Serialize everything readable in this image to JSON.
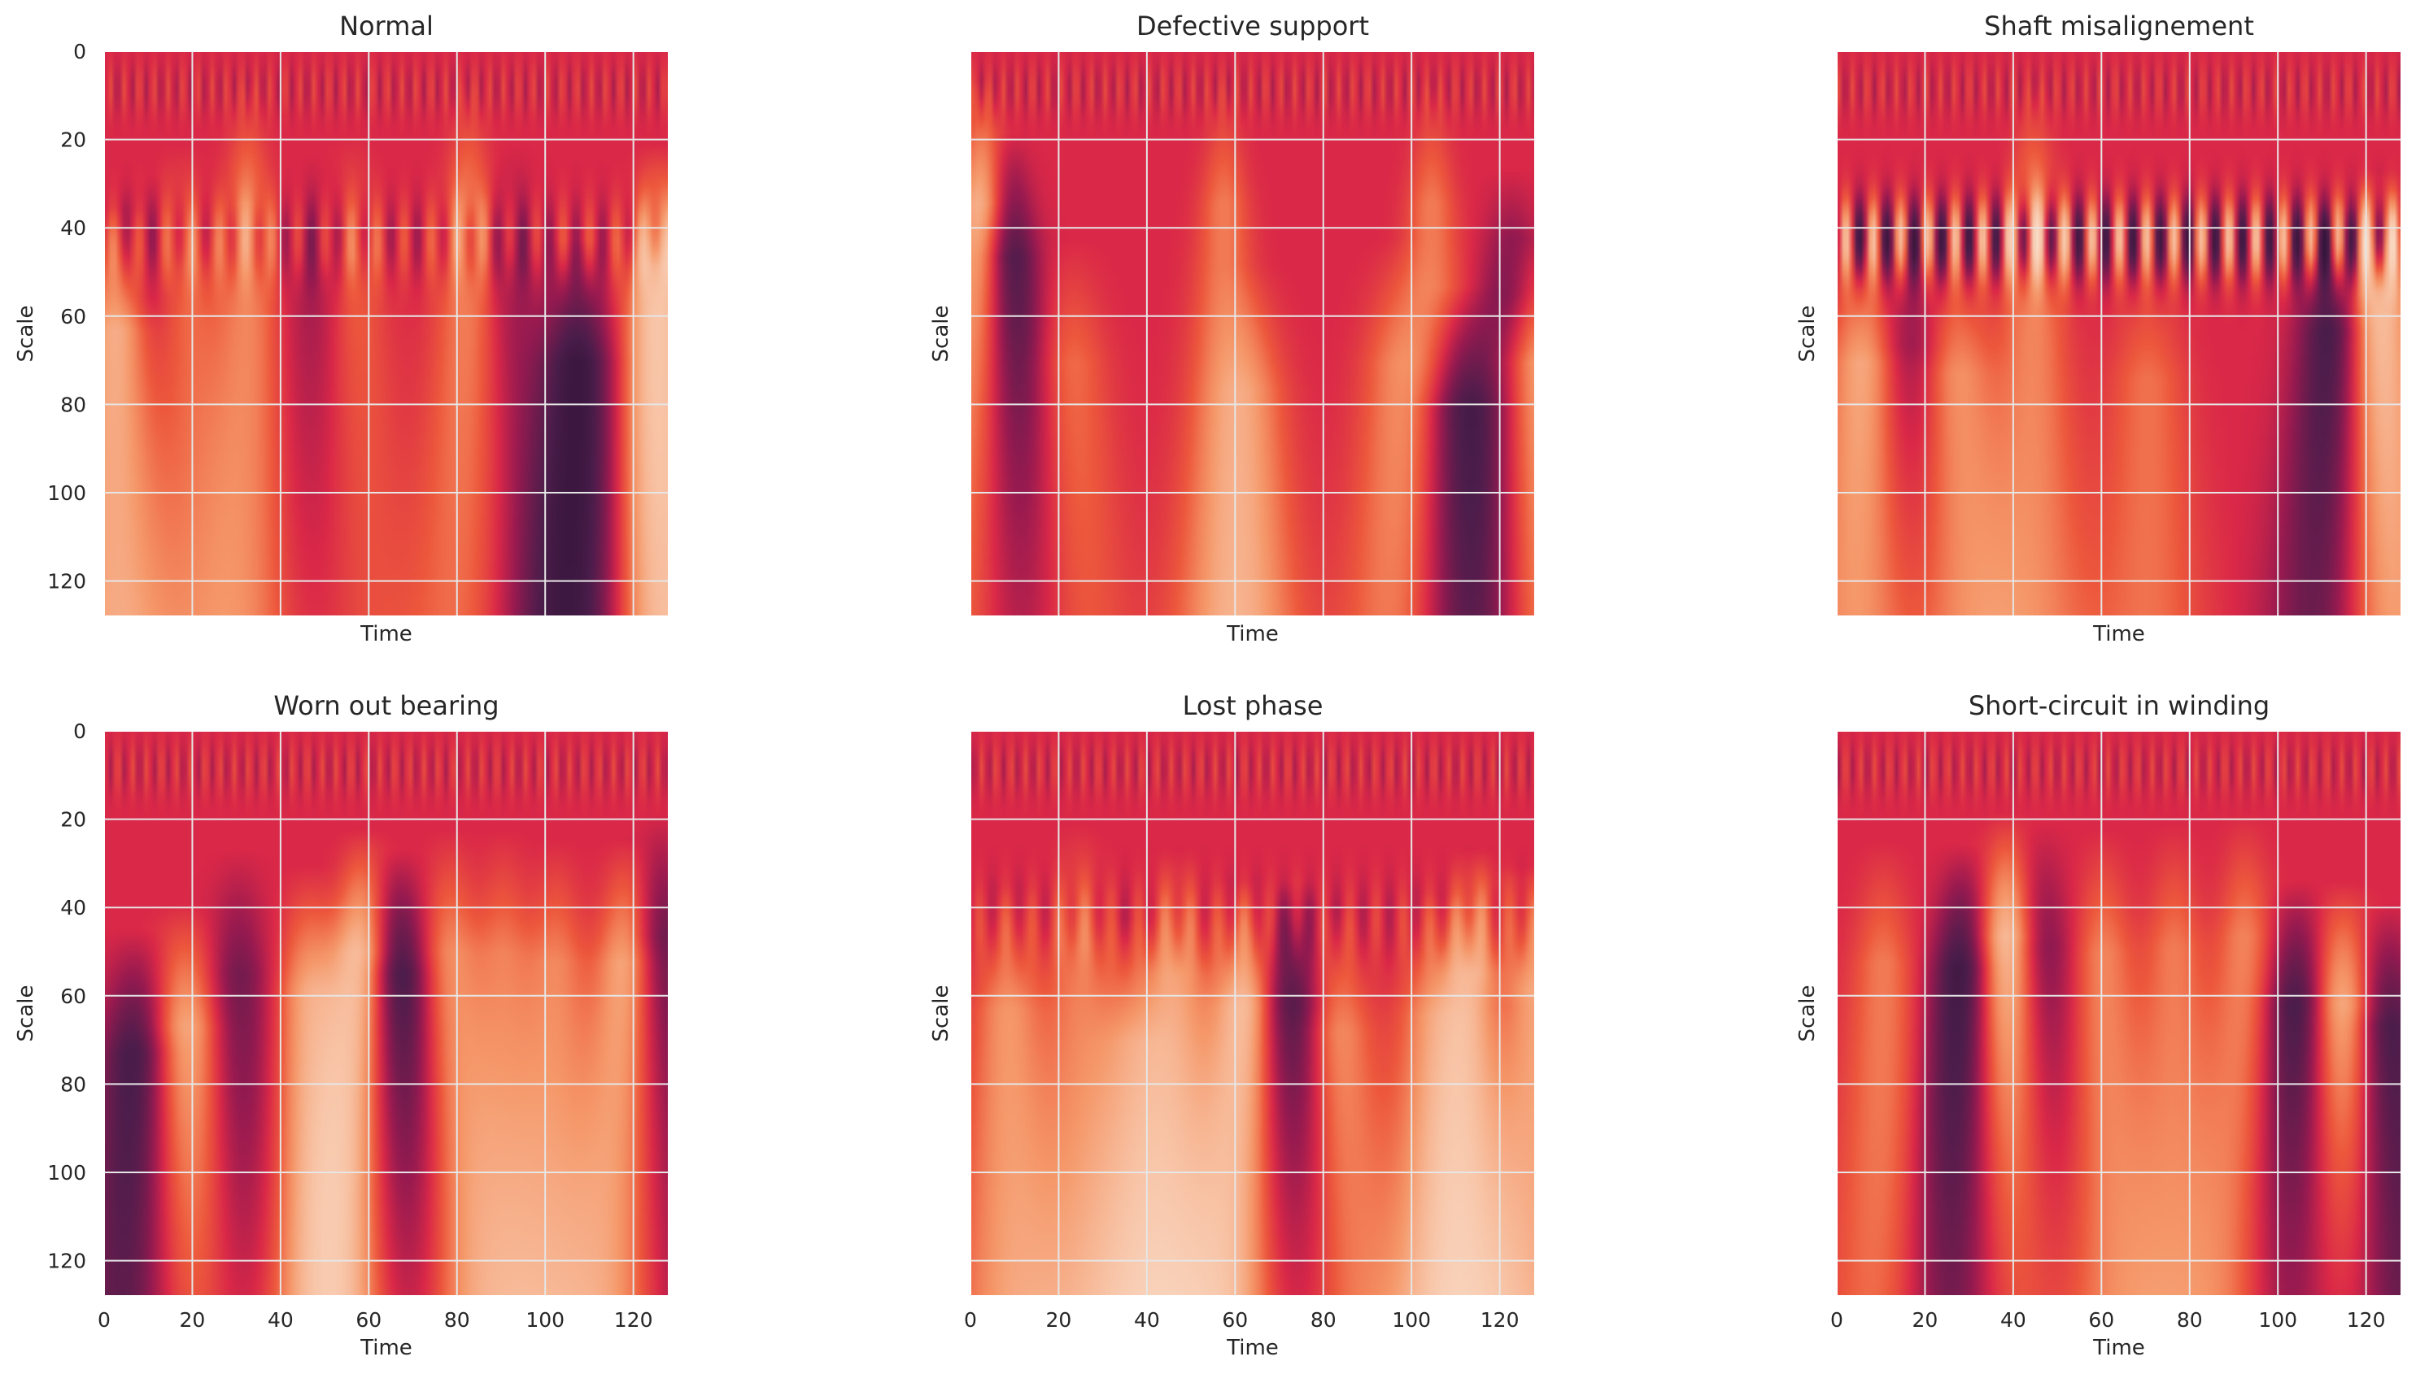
{
  "chart_data": [
    {
      "type": "heatmap",
      "title": "Normal",
      "xlabel": "Time",
      "ylabel": "Scale",
      "xlim": [
        0,
        128
      ],
      "ylim": [
        128,
        0
      ],
      "xticks": [],
      "yticks": [
        0,
        20,
        40,
        60,
        80,
        100,
        120
      ],
      "grid": true,
      "colormap": "rocket",
      "pattern": {
        "bands": [
          {
            "t": 3,
            "v": 0.9,
            "s0": 58
          },
          {
            "t": 10,
            "v": -0.4,
            "s0": 46
          },
          {
            "t": 17,
            "v": 0.45,
            "s0": 34
          },
          {
            "t": 32,
            "v": 0.5,
            "s0": 10
          },
          {
            "t": 48,
            "v": -0.3,
            "s0": 38
          },
          {
            "t": 56,
            "v": 0.35,
            "s0": 30
          },
          {
            "t": 82,
            "v": 0.5,
            "s0": 10
          },
          {
            "t": 92,
            "v": -0.3,
            "s0": 34
          },
          {
            "t": 107,
            "v": -0.95,
            "s0": 70
          },
          {
            "t": 125,
            "v": 1.0,
            "s0": 34
          }
        ],
        "stripe_row": 42,
        "stripe_amp": 0.3,
        "stripe_period": 6
      }
    },
    {
      "type": "heatmap",
      "title": "Defective support",
      "xlabel": "Time",
      "ylabel": "Scale",
      "xlim": [
        0,
        128
      ],
      "ylim": [
        128,
        0
      ],
      "xticks": [],
      "yticks": [],
      "grid": true,
      "colormap": "rocket",
      "pattern": {
        "bands": [
          {
            "t": 2,
            "v": 0.9,
            "s0": 10
          },
          {
            "t": 8,
            "v": -0.95,
            "s0": 30
          },
          {
            "t": 22,
            "v": 0.4,
            "s0": 70
          },
          {
            "t": 57,
            "v": 0.45,
            "s0": 10
          },
          {
            "t": 63,
            "v": 0.4,
            "s0": 80
          },
          {
            "t": 96,
            "v": 0.4,
            "s0": 70
          },
          {
            "t": 104,
            "v": 0.45,
            "s0": 10
          },
          {
            "t": 110,
            "v": -0.95,
            "s0": 88
          },
          {
            "t": 122,
            "v": -0.6,
            "s0": 44
          },
          {
            "t": 127,
            "v": 1.0,
            "s0": 70
          }
        ],
        "stripe_row": 0,
        "stripe_amp": 0.0,
        "stripe_period": 6
      }
    },
    {
      "type": "heatmap",
      "title": "Shaft misalignement",
      "xlabel": "Time",
      "ylabel": "Scale",
      "xlim": [
        0,
        128
      ],
      "ylim": [
        128,
        0
      ],
      "xticks": [],
      "yticks": [],
      "grid": true,
      "colormap": "rocket",
      "pattern": {
        "bands": [
          {
            "t": 6,
            "v": 0.8,
            "s0": 70
          },
          {
            "t": 16,
            "v": -0.5,
            "s0": 64
          },
          {
            "t": 26,
            "v": 0.65,
            "s0": 74
          },
          {
            "t": 44,
            "v": 0.5,
            "s0": 10
          },
          {
            "t": 70,
            "v": 0.4,
            "s0": 76
          },
          {
            "t": 112,
            "v": -0.9,
            "s0": 58
          },
          {
            "t": 122,
            "v": 1.0,
            "s0": 44
          }
        ],
        "stripe_row": 42,
        "stripe_amp": 0.95,
        "stripe_period": 6.2
      }
    },
    {
      "type": "heatmap",
      "title": "Worn out bearing",
      "xlabel": "Time",
      "ylabel": "Scale",
      "xlim": [
        0,
        128
      ],
      "ylim": [
        128,
        0
      ],
      "xticks": [
        0,
        20,
        40,
        60,
        80,
        100,
        120
      ],
      "yticks": [
        0,
        20,
        40,
        60,
        80,
        100,
        120
      ],
      "grid": true,
      "colormap": "rocket",
      "pattern": {
        "bands": [
          {
            "t": 7,
            "v": -0.9,
            "s0": 74
          },
          {
            "t": 18,
            "v": 0.85,
            "s0": 64
          },
          {
            "t": 30,
            "v": -0.5,
            "s0": 44
          },
          {
            "t": 46,
            "v": 0.7,
            "s0": 50
          },
          {
            "t": 58,
            "v": 1.0,
            "s0": 36
          },
          {
            "t": 66,
            "v": -1.0,
            "s0": 44
          },
          {
            "t": 78,
            "v": 0.55,
            "s0": 36
          },
          {
            "t": 90,
            "v": 0.45,
            "s0": 36
          },
          {
            "t": 102,
            "v": 0.5,
            "s0": 40
          },
          {
            "t": 118,
            "v": 0.8,
            "s0": 40
          },
          {
            "t": 126,
            "v": -0.6,
            "s0": 30
          }
        ],
        "stripe_row": 0,
        "stripe_amp": 0.0,
        "stripe_period": 6
      }
    },
    {
      "type": "heatmap",
      "title": "Lost phase",
      "xlabel": "Time",
      "ylabel": "Scale",
      "xlim": [
        0,
        128
      ],
      "ylim": [
        128,
        0
      ],
      "xticks": [
        0,
        20,
        40,
        60,
        80,
        100,
        120
      ],
      "yticks": [],
      "grid": true,
      "colormap": "rocket",
      "pattern": {
        "bands": [
          {
            "t": 8,
            "v": 0.6,
            "s0": 58
          },
          {
            "t": 24,
            "v": 0.45,
            "s0": 34
          },
          {
            "t": 36,
            "v": 0.55,
            "s0": 70
          },
          {
            "t": 46,
            "v": 0.65,
            "s0": 44
          },
          {
            "t": 62,
            "v": 1.0,
            "s0": 56
          },
          {
            "t": 72,
            "v": -0.9,
            "s0": 56
          },
          {
            "t": 82,
            "v": 0.65,
            "s0": 66
          },
          {
            "t": 104,
            "v": 0.55,
            "s0": 60
          },
          {
            "t": 114,
            "v": 0.95,
            "s0": 44
          },
          {
            "t": 120,
            "v": -0.6,
            "s0": 56
          },
          {
            "t": 126,
            "v": 0.9,
            "s0": 50
          }
        ],
        "stripe_row": 42,
        "stripe_amp": 0.2,
        "stripe_period": 6
      }
    },
    {
      "type": "heatmap",
      "title": "Short-circuit in winding",
      "xlabel": "Time",
      "ylabel": "Scale",
      "xlim": [
        0,
        128
      ],
      "ylim": [
        128,
        0
      ],
      "xticks": [
        0,
        20,
        40,
        60,
        80,
        100,
        120
      ],
      "yticks": [],
      "grid": true,
      "colormap": "rocket",
      "pattern": {
        "bands": [
          {
            "t": 10,
            "v": 0.45,
            "s0": 40
          },
          {
            "t": 28,
            "v": -0.95,
            "s0": 42
          },
          {
            "t": 38,
            "v": 1.0,
            "s0": 30
          },
          {
            "t": 46,
            "v": -0.5,
            "s0": 34
          },
          {
            "t": 60,
            "v": 0.5,
            "s0": 36
          },
          {
            "t": 76,
            "v": 0.45,
            "s0": 34
          },
          {
            "t": 92,
            "v": 0.5,
            "s0": 30
          },
          {
            "t": 104,
            "v": -0.95,
            "s0": 56
          },
          {
            "t": 114,
            "v": 1.0,
            "s0": 56
          },
          {
            "t": 124,
            "v": -0.9,
            "s0": 64
          }
        ],
        "stripe_row": 0,
        "stripe_amp": 0.0,
        "stripe_period": 6
      }
    }
  ]
}
